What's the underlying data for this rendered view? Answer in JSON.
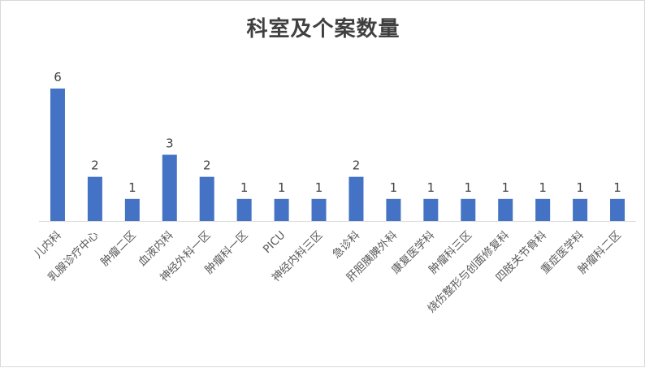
{
  "chart_data": {
    "type": "bar",
    "title": "科室及个案数量",
    "xlabel": "",
    "ylabel": "",
    "categories": [
      "儿内科",
      "乳腺诊疗中心",
      "肿瘤二区",
      "血液内科",
      "神经外科一区",
      "肿瘤科一区",
      "PICU",
      "神经内科三区",
      "急诊科",
      "肝胆胰脾外科",
      "康复医学科",
      "肿瘤科三区",
      "烧伤整形与创面修复科",
      "四肢关节骨科",
      "重症医学科",
      "肿瘤科二区"
    ],
    "values": [
      6,
      2,
      1,
      3,
      2,
      1,
      1,
      1,
      2,
      1,
      1,
      1,
      1,
      1,
      1,
      1
    ],
    "ylim": [
      0,
      6
    ],
    "grid": false,
    "legend": "none",
    "bar_color": "#4472c4"
  }
}
